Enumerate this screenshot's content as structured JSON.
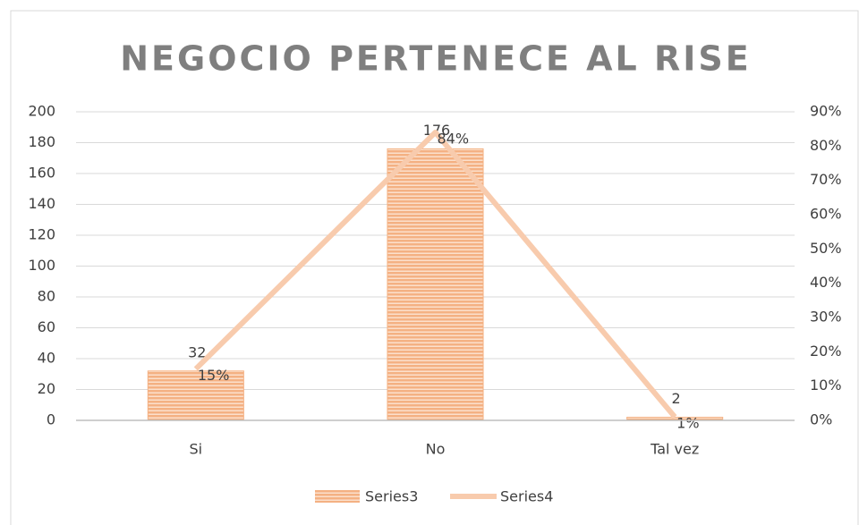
{
  "chart_data": {
    "type": "bar",
    "title": "NEGOCIO PERTENECE AL RISE",
    "categories": [
      "Si",
      "No",
      "Tal vez"
    ],
    "series": [
      {
        "name": "Series3",
        "type": "bar",
        "color": "#f4b183",
        "values": [
          32,
          176,
          2
        ]
      },
      {
        "name": "Series4",
        "type": "line",
        "axis": "y2",
        "color": "#f8cbad",
        "values": [
          15,
          84,
          1
        ],
        "value_labels": [
          "15%",
          "84%",
          "1%"
        ]
      }
    ],
    "ylim": [
      0,
      200
    ],
    "yticks": [
      0,
      20,
      40,
      60,
      80,
      100,
      120,
      140,
      160,
      180,
      200
    ],
    "y2lim": [
      0,
      90
    ],
    "y2ticks": [
      {
        "value": 0,
        "label": "0%"
      },
      {
        "value": 10,
        "label": "10%"
      },
      {
        "value": 20,
        "label": "20%"
      },
      {
        "value": 30,
        "label": "30%"
      },
      {
        "value": 40,
        "label": "40%"
      },
      {
        "value": 50,
        "label": "50%"
      },
      {
        "value": 60,
        "label": "60%"
      },
      {
        "value": 70,
        "label": "70%"
      },
      {
        "value": 80,
        "label": "80%"
      },
      {
        "value": 90,
        "label": "90%"
      }
    ],
    "grid": true,
    "legend": "bottom"
  }
}
